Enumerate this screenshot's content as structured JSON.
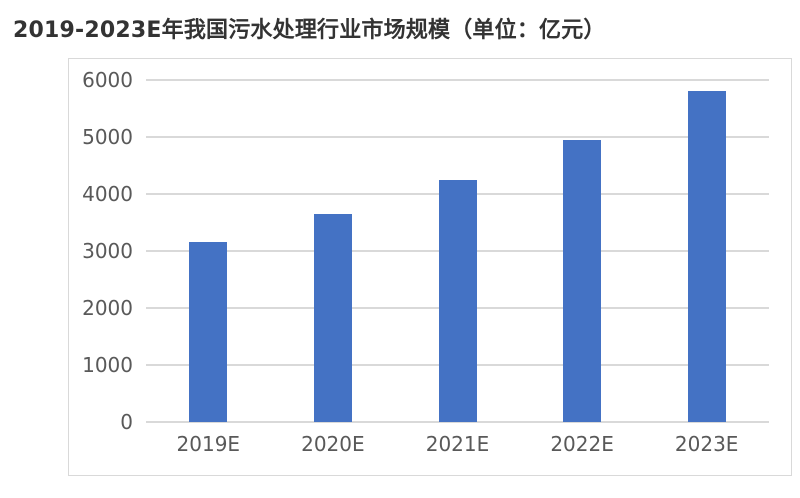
{
  "page": {
    "title": "2019-2023E年我国污水处理行业市场规模（单位：亿元）"
  },
  "colors": {
    "bar": "#4472C4",
    "gridline": "#D9D9D9",
    "axis_line": "#D9D9D9",
    "tick_text": "#595959",
    "title_text": "#333333",
    "frame_border": "#D9D9D9",
    "background": "#FFFFFF"
  },
  "chart_data": {
    "type": "bar",
    "title": "2019-2023E年我国污水处理行业市场规模（单位：亿元）",
    "unit": "亿元",
    "categories": [
      "2019E",
      "2020E",
      "2021E",
      "2022E",
      "2023E"
    ],
    "values": [
      3150,
      3650,
      4250,
      4950,
      5800
    ],
    "xlabel": "",
    "ylabel": "",
    "ylim": [
      0,
      6000
    ],
    "yticks": [
      0,
      1000,
      2000,
      3000,
      4000,
      5000,
      6000
    ],
    "grid": true,
    "legend": false,
    "legend_position": "none",
    "bar_color": "#4472C4"
  }
}
